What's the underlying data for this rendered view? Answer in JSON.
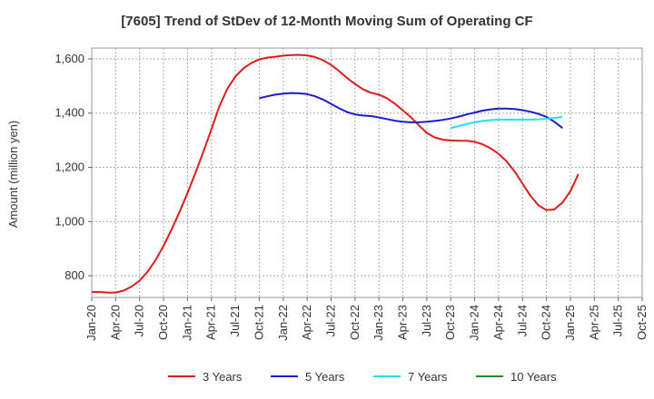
{
  "chart_data": {
    "type": "line",
    "title": "[7605]  Trend of StDev of 12-Month Moving Sum of Operating CF",
    "xlabel": "",
    "ylabel": "Amount (million yen)",
    "ylim": [
      720,
      1640
    ],
    "yticks": [
      800,
      1000,
      1200,
      1400,
      1600
    ],
    "ytick_labels": [
      "800",
      "1,000",
      "1,200",
      "1,400",
      "1,600"
    ],
    "x_ticks": [
      "Jan-20",
      "Apr-20",
      "Jul-20",
      "Oct-20",
      "Jan-21",
      "Apr-21",
      "Jul-21",
      "Oct-21",
      "Jan-22",
      "Apr-22",
      "Jul-22",
      "Oct-22",
      "Jan-23",
      "Apr-23",
      "Jul-23",
      "Oct-23",
      "Jan-24",
      "Apr-24",
      "Jul-24",
      "Oct-24",
      "Jan-25",
      "Apr-25",
      "Jul-25",
      "Oct-25"
    ],
    "x_period": "monthly",
    "grid": true,
    "legend_position": "bottom",
    "series": [
      {
        "name": "3 Years",
        "color": "#dd1c1c",
        "start": "Jan-20",
        "values": [
          740,
          740,
          738,
          738,
          745,
          760,
          782,
          815,
          858,
          910,
          970,
          1035,
          1105,
          1180,
          1258,
          1340,
          1425,
          1490,
          1535,
          1565,
          1585,
          1598,
          1605,
          1608,
          1612,
          1614,
          1615,
          1613,
          1607,
          1595,
          1578,
          1555,
          1530,
          1508,
          1488,
          1475,
          1468,
          1455,
          1435,
          1410,
          1385,
          1355,
          1327,
          1310,
          1302,
          1299,
          1298,
          1298,
          1294,
          1285,
          1270,
          1250,
          1222,
          1185,
          1140,
          1095,
          1060,
          1042,
          1045,
          1070,
          1112,
          1175
        ]
      },
      {
        "name": "5 Years",
        "color": "#1c1ccc",
        "start": "Jan-20",
        "values": [
          null,
          null,
          null,
          null,
          null,
          null,
          null,
          null,
          null,
          null,
          null,
          null,
          null,
          null,
          null,
          null,
          null,
          null,
          null,
          null,
          null,
          1455,
          1462,
          1468,
          1472,
          1474,
          1473,
          1470,
          1462,
          1450,
          1434,
          1418,
          1404,
          1395,
          1391,
          1389,
          1384,
          1378,
          1372,
          1368,
          1366,
          1366,
          1368,
          1371,
          1375,
          1380,
          1387,
          1395,
          1402,
          1409,
          1414,
          1417,
          1417,
          1415,
          1411,
          1405,
          1397,
          1386,
          1368,
          1345
        ]
      },
      {
        "name": "7 Years",
        "color": "#22e0f0",
        "start": "Jan-20",
        "values": [
          null,
          null,
          null,
          null,
          null,
          null,
          null,
          null,
          null,
          null,
          null,
          null,
          null,
          null,
          null,
          null,
          null,
          null,
          null,
          null,
          null,
          null,
          null,
          null,
          null,
          null,
          null,
          null,
          null,
          null,
          null,
          null,
          null,
          null,
          null,
          null,
          null,
          null,
          null,
          null,
          null,
          null,
          null,
          null,
          null,
          1345,
          1352,
          1360,
          1366,
          1371,
          1374,
          1376,
          1376,
          1376,
          1376,
          1376,
          1377,
          1379,
          1382,
          1386
        ]
      },
      {
        "name": "10 Years",
        "color": "#228b22",
        "start": "Jan-20",
        "values": []
      }
    ]
  }
}
